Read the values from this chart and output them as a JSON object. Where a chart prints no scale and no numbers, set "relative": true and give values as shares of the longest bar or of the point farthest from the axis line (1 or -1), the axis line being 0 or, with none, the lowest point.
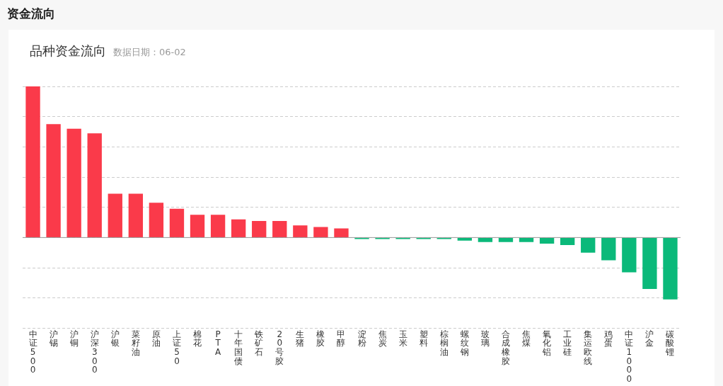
{
  "chart_data": {
    "type": "bar",
    "title": "资金流向",
    "subtitle": "品种资金流向",
    "annotations": [
      "数据日期：06-02"
    ],
    "relative": true,
    "grid": "y",
    "categories": [
      "中证500",
      "沪锡",
      "沪铜",
      "沪深300",
      "沪银",
      "菜籽油",
      "原油",
      "上证50",
      "棉花",
      "PTA",
      "十年国债",
      "铁矿石",
      "20号胶",
      "生猪",
      "橡胶",
      "甲醇",
      "淀粉",
      "焦炭",
      "玉米",
      "塑料",
      "棕榈油",
      "螺纹钢",
      "玻璃",
      "合成橡胶",
      "焦煤",
      "氧化铝",
      "工业硅",
      "集运欧线",
      "鸡蛋",
      "中证1000",
      "沪金",
      "碳酸锂"
    ],
    "values": [
      1,
      0.75,
      0.72,
      0.69,
      0.29,
      0.29,
      0.23,
      0.19,
      0.15,
      0.15,
      0.12,
      0.11,
      0.11,
      0.08,
      0.07,
      0.06,
      -0.01,
      -0.01,
      -0.01,
      -0.01,
      -0.01,
      -0.02,
      -0.03,
      -0.03,
      -0.03,
      -0.04,
      -0.05,
      -0.1,
      -0.15,
      -0.23,
      -0.34,
      -0.41
    ],
    "colors": [
      "#fa3a4a",
      "#fa3a4a",
      "#fa3a4a",
      "#fa3a4a",
      "#fa3a4a",
      "#fa3a4a",
      "#fa3a4a",
      "#fa3a4a",
      "#fa3a4a",
      "#fa3a4a",
      "#fa3a4a",
      "#fa3a4a",
      "#fa3a4a",
      "#fa3a4a",
      "#fa3a4a",
      "#fa3a4a",
      "#0bb97a",
      "#0bb97a",
      "#0bb97a",
      "#0bb97a",
      "#0bb97a",
      "#0bb97a",
      "#0bb97a",
      "#0bb97a",
      "#0bb97a",
      "#0bb97a",
      "#0bb97a",
      "#0bb97a",
      "#0bb97a",
      "#0bb97a",
      "#0bb97a",
      "#0bb97a"
    ]
  }
}
